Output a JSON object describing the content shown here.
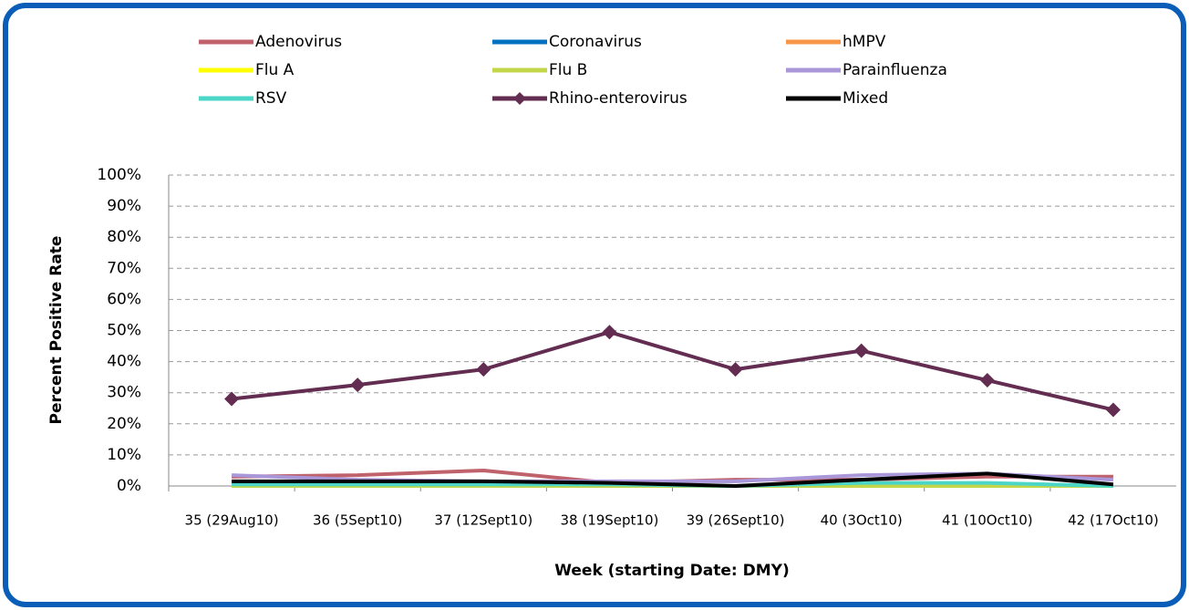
{
  "chart_data": {
    "type": "line",
    "xlabel": "Week (starting Date: DMY)",
    "ylabel": "Percent Positive Rate",
    "categories": [
      "35 (29Aug10)",
      "36 (5Sept10)",
      "37 (12Sept10)",
      "38 (19Sept10)",
      "39 (26Sept10)",
      "40 (3Oct10)",
      "41 (10Oct10)",
      "42 (17Oct10)"
    ],
    "series": [
      {
        "name": "Adenovirus",
        "color": "#c0626b",
        "values": [
          3,
          3.5,
          5,
          1,
          2,
          2,
          3,
          3
        ]
      },
      {
        "name": "Coronavirus",
        "color": "#0070c0",
        "values": [
          0,
          0,
          0,
          0,
          0,
          0,
          0,
          0
        ]
      },
      {
        "name": "hMPV",
        "color": "#f79646",
        "values": [
          0,
          0,
          0,
          0,
          0,
          0,
          0,
          0
        ]
      },
      {
        "name": "Flu A",
        "color": "#ffff00",
        "values": [
          0,
          0,
          0,
          0,
          0,
          0,
          0,
          0
        ]
      },
      {
        "name": "Flu B",
        "color": "#c4d64a",
        "values": [
          0,
          0,
          0,
          0,
          0,
          0,
          0,
          0
        ]
      },
      {
        "name": "Parainfluenza",
        "color": "#a997d9",
        "values": [
          3.5,
          2,
          1.5,
          1.5,
          1.5,
          3.5,
          4,
          2
        ]
      },
      {
        "name": "RSV",
        "color": "#4bd6c8",
        "values": [
          0.5,
          0.5,
          0.5,
          0.5,
          0,
          1,
          1,
          0
        ]
      },
      {
        "name": "Rhino-enterovirus",
        "color": "#632d52",
        "marker": "diamond",
        "values": [
          28,
          32.5,
          37.5,
          49.5,
          37.5,
          43.5,
          34,
          24.5
        ]
      },
      {
        "name": "Mixed",
        "color": "#000000",
        "values": [
          1.5,
          1.5,
          1.5,
          1,
          0,
          2,
          4,
          0.5
        ]
      }
    ],
    "ylim": [
      0,
      100
    ],
    "yticks": [
      {
        "value": 0,
        "label": "0%"
      },
      {
        "value": 10,
        "label": "10%"
      },
      {
        "value": 20,
        "label": "20%"
      },
      {
        "value": 30,
        "label": "30%"
      },
      {
        "value": 40,
        "label": "40%"
      },
      {
        "value": 50,
        "label": "50%"
      },
      {
        "value": 60,
        "label": "60%"
      },
      {
        "value": 70,
        "label": "70%"
      },
      {
        "value": 80,
        "label": "80%"
      },
      {
        "value": 90,
        "label": "90%"
      },
      {
        "value": 100,
        "label": "100%"
      }
    ],
    "grid": true,
    "legend": "top"
  }
}
